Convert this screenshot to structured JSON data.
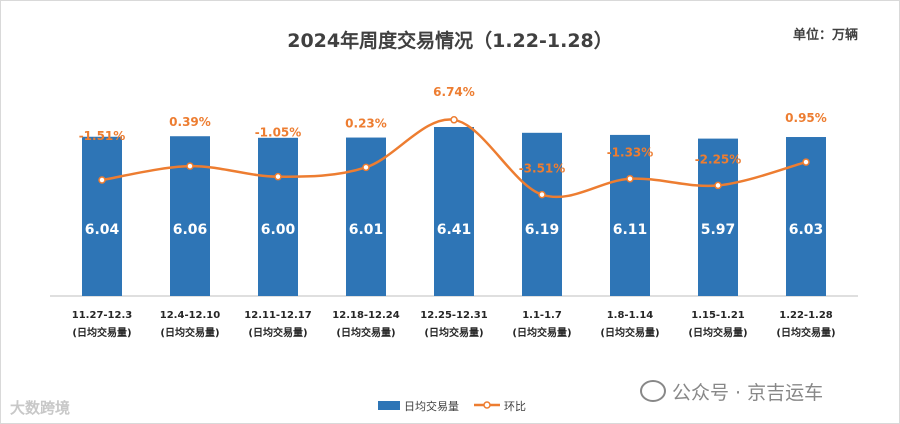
{
  "title": "2024年周度交易情况（1.22-1.28）",
  "unit_label": "单位：万辆",
  "watermark_left": "大数跨境",
  "watermark_right": "公众号 · 京吉运车",
  "chart_data": {
    "type": "bar",
    "categories": [
      "11.27-12.3",
      "12.4-12.10",
      "12.11-12.17",
      "12.18-12.24",
      "12.25-12.31",
      "1.1-1.7",
      "1.8-1.14",
      "1.15-1.21",
      "1.22-1.28"
    ],
    "category_sublabel": "(日均交易量)",
    "series": [
      {
        "name": "日均交易量",
        "type": "bar",
        "values": [
          6.04,
          6.06,
          6.0,
          6.01,
          6.41,
          6.19,
          6.11,
          5.97,
          6.03
        ],
        "color": "#2e75b6"
      },
      {
        "name": "环比",
        "type": "line",
        "values": [
          -1.51,
          0.39,
          -1.05,
          0.23,
          6.74,
          -3.51,
          -1.33,
          -2.25,
          0.95
        ],
        "labels": [
          "-1.51%",
          "0.39%",
          "-1.05%",
          "0.23%",
          "6.74%",
          "-3.51%",
          "-1.33%",
          "-2.25%",
          "0.95%"
        ],
        "color": "#ed7d31"
      }
    ],
    "legend_position": "bottom",
    "grid": false
  }
}
